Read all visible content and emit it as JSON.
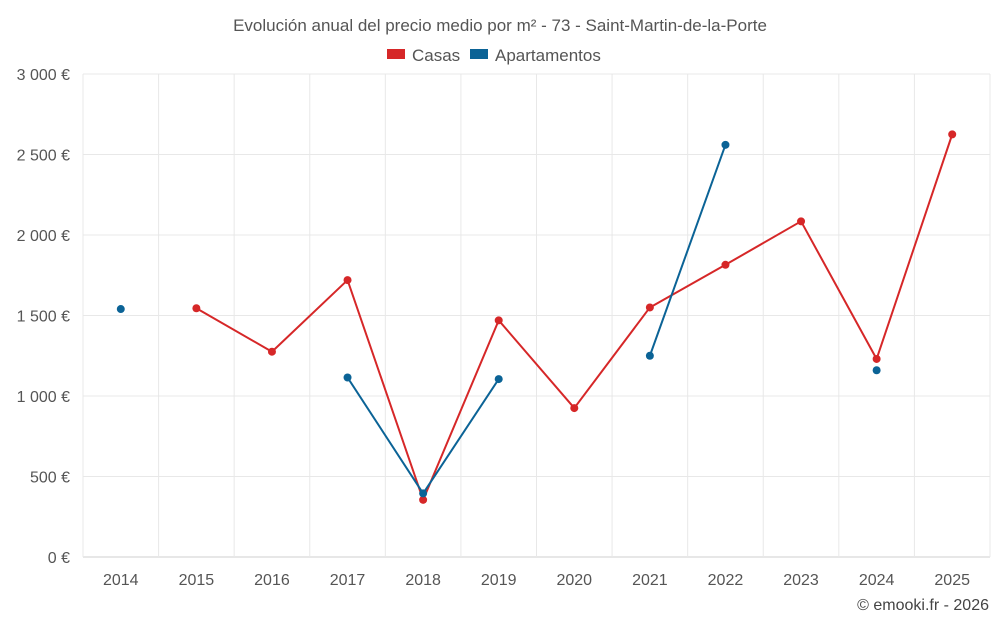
{
  "chart_data": {
    "type": "line",
    "title": "Evolución anual del precio medio por m² - 73 - Saint-Martin-de-la-Porte",
    "xlabel": "",
    "ylabel": "",
    "categories": [
      "2014",
      "2015",
      "2016",
      "2017",
      "2018",
      "2019",
      "2020",
      "2021",
      "2022",
      "2023",
      "2024",
      "2025"
    ],
    "ylim": [
      0,
      3000
    ],
    "yticks": [
      0,
      500,
      1000,
      1500,
      2000,
      2500,
      3000
    ],
    "ytick_labels": [
      "0 €",
      "500 €",
      "1 000 €",
      "1 500 €",
      "2 000 €",
      "2 500 €",
      "3 000 €"
    ],
    "grid": true,
    "legend_position": "top-center",
    "series": [
      {
        "name": "Casas",
        "color": "#d62728",
        "values": [
          null,
          1545,
          1275,
          1720,
          355,
          1470,
          925,
          1550,
          1815,
          2085,
          1230,
          2625
        ]
      },
      {
        "name": "Apartamentos",
        "color": "#0b6396",
        "values": [
          1540,
          null,
          null,
          1115,
          395,
          1105,
          null,
          1250,
          2560,
          null,
          1160,
          null
        ]
      }
    ]
  },
  "credit": "© emooki.fr - 2026"
}
